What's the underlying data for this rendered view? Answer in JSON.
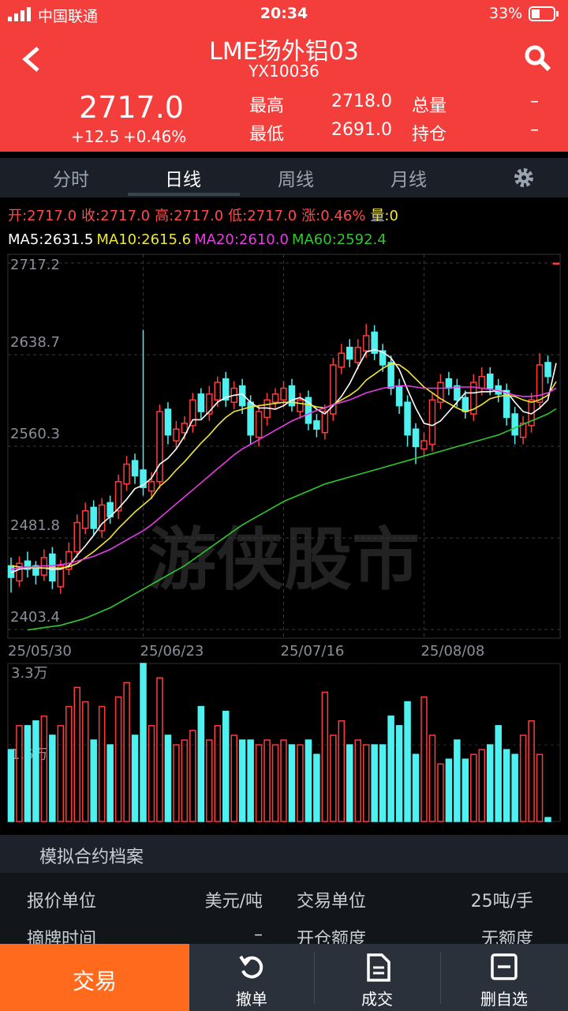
{
  "status_bar": {
    "carrier": "中国联通",
    "time": "20:34",
    "battery": "33%"
  },
  "header": {
    "title": "LME场外铝03",
    "code": "YX10036",
    "price": "2717.0",
    "change": "+12.5",
    "change_pct": "+0.46%",
    "stats": [
      [
        "最高",
        "2718.0",
        "总量",
        "–"
      ],
      [
        "最低",
        "2691.0",
        "持仓",
        "–"
      ]
    ]
  },
  "tabs": [
    "分时",
    "日线",
    "周线",
    "月线"
  ],
  "chart_data": {
    "type": "candlestick",
    "quote_labels": [
      {
        "text": "开:2717.0",
        "color": "#ff4a4a"
      },
      {
        "text": "收:2717.0",
        "color": "#ff4a4a"
      },
      {
        "text": "高:2717.0",
        "color": "#ff4a4a"
      },
      {
        "text": "低:2717.0",
        "color": "#ff4a4a"
      },
      {
        "text": "涨:0.46%",
        "color": "#ff4a4a"
      },
      {
        "text": "量:0",
        "color": "#f5e63a"
      }
    ],
    "categories": [
      "25/05/30",
      null,
      null,
      null,
      null,
      null,
      null,
      null,
      null,
      null,
      null,
      null,
      null,
      null,
      null,
      null,
      "25/06/23",
      null,
      null,
      null,
      null,
      null,
      null,
      null,
      null,
      null,
      null,
      null,
      null,
      null,
      null,
      null,
      null,
      "25/07/16",
      null,
      null,
      null,
      null,
      null,
      null,
      null,
      null,
      null,
      null,
      null,
      null,
      null,
      null,
      null,
      null,
      "25/08/08",
      null,
      null,
      null,
      null,
      null,
      null,
      null,
      null,
      null,
      null,
      null,
      null,
      null,
      null,
      null,
      null
    ],
    "candles": {
      "open": [
        2458,
        2445,
        2462,
        2458,
        2450,
        2468,
        2440,
        2455,
        2470,
        2490,
        2508,
        2488,
        2512,
        2505,
        2528,
        2548,
        2540,
        2522,
        2530,
        2592,
        2565,
        2572,
        2578,
        2605,
        2588,
        2600,
        2618,
        2598,
        2612,
        2598,
        2568,
        2585,
        2598,
        2600,
        2612,
        2590,
        2602,
        2582,
        2572,
        2588,
        2628,
        2645,
        2632,
        2642,
        2658,
        2642,
        2632,
        2612,
        2598,
        2575,
        2558,
        2562,
        2598,
        2618,
        2612,
        2602,
        2588,
        2610,
        2622,
        2612,
        2608,
        2588,
        2568,
        2578,
        2598,
        2632,
        2717
      ],
      "high": [
        2465,
        2466,
        2470,
        2462,
        2472,
        2474,
        2463,
        2478,
        2502,
        2512,
        2514,
        2516,
        2518,
        2536,
        2552,
        2554,
        2660,
        2538,
        2596,
        2598,
        2582,
        2586,
        2606,
        2610,
        2612,
        2620,
        2624,
        2616,
        2618,
        2604,
        2596,
        2606,
        2610,
        2616,
        2618,
        2606,
        2608,
        2588,
        2596,
        2636,
        2648,
        2652,
        2652,
        2665,
        2664,
        2648,
        2638,
        2618,
        2604,
        2580,
        2572,
        2606,
        2622,
        2624,
        2618,
        2608,
        2622,
        2628,
        2628,
        2618,
        2614,
        2594,
        2586,
        2606,
        2640,
        2638,
        2717
      ],
      "low": [
        2435,
        2440,
        2448,
        2442,
        2445,
        2438,
        2434,
        2450,
        2465,
        2485,
        2484,
        2482,
        2494,
        2498,
        2522,
        2528,
        2518,
        2515,
        2524,
        2562,
        2558,
        2566,
        2572,
        2584,
        2582,
        2594,
        2594,
        2592,
        2588,
        2562,
        2560,
        2578,
        2592,
        2594,
        2590,
        2584,
        2574,
        2568,
        2566,
        2582,
        2622,
        2628,
        2626,
        2636,
        2634,
        2624,
        2604,
        2588,
        2560,
        2545,
        2552,
        2556,
        2592,
        2604,
        2594,
        2584,
        2582,
        2604,
        2604,
        2598,
        2578,
        2562,
        2562,
        2572,
        2592,
        2614,
        2717
      ],
      "close": [
        2448,
        2460,
        2455,
        2450,
        2465,
        2445,
        2458,
        2470,
        2495,
        2505,
        2490,
        2510,
        2500,
        2530,
        2545,
        2535,
        2525,
        2530,
        2590,
        2570,
        2575,
        2580,
        2600,
        2590,
        2605,
        2615,
        2600,
        2610,
        2595,
        2570,
        2590,
        2600,
        2605,
        2610,
        2595,
        2600,
        2580,
        2575,
        2590,
        2630,
        2640,
        2635,
        2645,
        2655,
        2640,
        2630,
        2610,
        2595,
        2570,
        2560,
        2565,
        2600,
        2615,
        2610,
        2600,
        2590,
        2615,
        2620,
        2610,
        2605,
        2585,
        2570,
        2580,
        2600,
        2630,
        2620,
        2717
      ]
    },
    "up_color": "#ff3b3b",
    "down_color": "#4ff0f0",
    "ylim": [
      2403.4,
      2717.2
    ],
    "yticks": [
      2403.4,
      2481.8,
      2560.3,
      2638.7,
      2717.2
    ],
    "series": [
      {
        "label": "MA5:2631.5",
        "color": "#ffffff",
        "values": [
          2452,
          2455,
          2456,
          2456,
          2456,
          2455,
          2455,
          2458,
          2467,
          2475,
          2484,
          2494,
          2500,
          2507,
          2515,
          2524,
          2527,
          2533,
          2545,
          2550,
          2558,
          2569,
          2583,
          2583,
          2590,
          2598,
          2602,
          2604,
          2605,
          2598,
          2593,
          2593,
          2592,
          2595,
          2600,
          2602,
          2598,
          2592,
          2588,
          2595,
          2603,
          2614,
          2628,
          2641,
          2643,
          2641,
          2636,
          2626,
          2609,
          2593,
          2580,
          2578,
          2582,
          2590,
          2598,
          2606,
          2606,
          2607,
          2607,
          2608,
          2607,
          2598,
          2590,
          2588,
          2593,
          2600,
          2631.5
        ]
      },
      {
        "label": "MA10:2615.6",
        "color": "#f0e634",
        "values": [
          2458,
          2457,
          2456,
          2456,
          2456,
          2456,
          2456,
          2457,
          2460,
          2465,
          2470,
          2476,
          2482,
          2490,
          2497,
          2504,
          2510,
          2516,
          2526,
          2532,
          2540,
          2547,
          2555,
          2563,
          2570,
          2578,
          2585,
          2590,
          2592,
          2594,
          2595,
          2596,
          2597,
          2598,
          2598,
          2597,
          2596,
          2594,
          2593,
          2596,
          2600,
          2604,
          2609,
          2617,
          2622,
          2627,
          2631,
          2630,
          2625,
          2618,
          2611,
          2606,
          2601,
          2597,
          2593,
          2590,
          2592,
          2596,
          2601,
          2603,
          2604,
          2603,
          2600,
          2598,
          2600,
          2604,
          2615.6
        ]
      },
      {
        "label": "MA20:2610.0",
        "color": "#e83be8",
        "values": [
          2455,
          2456,
          2457,
          2457,
          2458,
          2458,
          2459,
          2460,
          2462,
          2464,
          2466,
          2469,
          2472,
          2476,
          2480,
          2484,
          2488,
          2493,
          2499,
          2505,
          2511,
          2517,
          2523,
          2529,
          2535,
          2541,
          2547,
          2553,
          2558,
          2562,
          2566,
          2570,
          2574,
          2578,
          2582,
          2585,
          2588,
          2591,
          2593,
          2596,
          2598,
          2600,
          2603,
          2606,
          2608,
          2610,
          2611,
          2612,
          2612,
          2611,
          2610,
          2610,
          2610,
          2610,
          2611,
          2611,
          2611,
          2610,
          2609,
          2608,
          2606,
          2604,
          2603,
          2603,
          2604,
          2606,
          2610.0
        ]
      },
      {
        "label": "MA60:2592.4",
        "color": "#2ec82e",
        "values": [
          null,
          null,
          2403,
          2404,
          2405,
          2406,
          2407,
          2409,
          2411,
          2413,
          2416,
          2419,
          2422,
          2426,
          2430,
          2434,
          2438,
          2442,
          2446,
          2450,
          2454,
          2458,
          2463,
          2468,
          2473,
          2478,
          2483,
          2488,
          2493,
          2497,
          2501,
          2505,
          2509,
          2513,
          2516,
          2519,
          2522,
          2525,
          2528,
          2530,
          2532,
          2534,
          2536,
          2538,
          2540,
          2542,
          2544,
          2546,
          2548,
          2550,
          2552,
          2554,
          2556,
          2558,
          2560,
          2562,
          2564,
          2566,
          2568,
          2570,
          2573,
          2576,
          2579,
          2582,
          2585,
          2588,
          2592.4
        ]
      }
    ],
    "volume": {
      "values": [
        15000,
        20000,
        20000,
        21000,
        22000,
        18000,
        20000,
        24000,
        28000,
        25000,
        17000,
        24000,
        16000,
        26000,
        29000,
        18000,
        33000,
        20000,
        30000,
        18000,
        16000,
        17000,
        19000,
        24000,
        17000,
        20000,
        23000,
        18000,
        17000,
        17000,
        16000,
        17000,
        16000,
        17000,
        16000,
        16000,
        17000,
        14000,
        27000,
        18000,
        21000,
        16000,
        17000,
        16000,
        16000,
        16000,
        22000,
        20000,
        25000,
        14000,
        26000,
        18000,
        12000,
        13000,
        17000,
        13000,
        14000,
        15000,
        16000,
        20000,
        15000,
        14000,
        18000,
        21000,
        14000,
        800,
        0
      ],
      "ylim": [
        0,
        33000
      ],
      "yticks": [
        {
          "value": 16000,
          "label": "1.6万"
        },
        {
          "value": 33000,
          "label": "3.3万"
        }
      ]
    },
    "watermark": "游侠股市"
  },
  "profile": {
    "title": "模拟合约档案",
    "rows": [
      [
        "报价单位",
        "美元/吨",
        "交易单位",
        "25吨/手"
      ],
      [
        "摘牌时间",
        "–",
        "开仓额度",
        "无额度"
      ]
    ]
  },
  "bottom_nav": [
    "交易",
    "撤单",
    "成交",
    "删自选"
  ]
}
